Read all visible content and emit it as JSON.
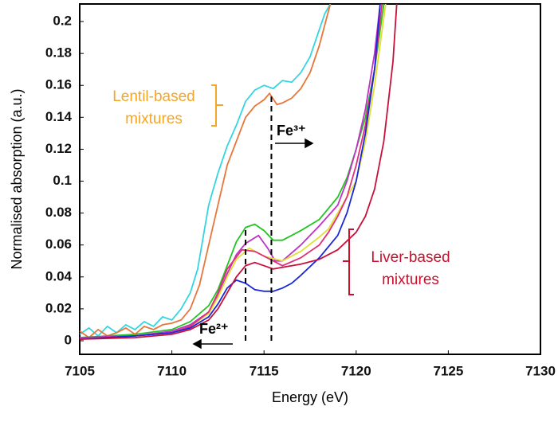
{
  "chart_data": {
    "type": "line",
    "xlabel": "Energy (eV)",
    "ylabel": "Normalised absorption (a.u.)",
    "xlim": [
      7105,
      7130
    ],
    "xticks": [
      7105,
      7110,
      7115,
      7120,
      7125,
      7130
    ],
    "ylim": [
      -0.0085,
      0.211
    ],
    "yticks": [
      0,
      0.02,
      0.04,
      0.06,
      0.08,
      0.1,
      0.12,
      0.14,
      0.16,
      0.18,
      0.2
    ],
    "series": [
      {
        "color": "#33d6e0",
        "x": [
          7105,
          7105.5,
          7106,
          7106.5,
          7107,
          7107.5,
          7108,
          7108.5,
          7109,
          7109.5,
          7110,
          7110.5,
          7111,
          7111.4,
          7111.7,
          7112,
          7112.5,
          7113,
          7113.5,
          7114,
          7114.5,
          7115,
          7115.5,
          7116,
          7116.5,
          7117,
          7117.5,
          7118,
          7118.3,
          7118.6
        ],
        "values": [
          0.004,
          0.008,
          0.003,
          0.009,
          0.005,
          0.01,
          0.007,
          0.012,
          0.009,
          0.015,
          0.013,
          0.02,
          0.03,
          0.045,
          0.065,
          0.085,
          0.105,
          0.122,
          0.135,
          0.15,
          0.157,
          0.16,
          0.158,
          0.163,
          0.162,
          0.168,
          0.178,
          0.195,
          0.205,
          0.211
        ]
      },
      {
        "color": "#e8763a",
        "x": [
          7105,
          7105.5,
          7106,
          7106.5,
          7107,
          7107.5,
          7108,
          7108.5,
          7109,
          7109.5,
          7110,
          7110.5,
          7111,
          7111.5,
          7112,
          7112.5,
          7113,
          7113.5,
          7114,
          7114.5,
          7115,
          7115.3,
          7115.7,
          7116,
          7116.5,
          7117,
          7117.5,
          7118,
          7118.3,
          7118.6
        ],
        "values": [
          0.006,
          0.002,
          0.007,
          0.003,
          0.005,
          0.008,
          0.004,
          0.009,
          0.007,
          0.01,
          0.011,
          0.013,
          0.02,
          0.035,
          0.06,
          0.085,
          0.11,
          0.125,
          0.14,
          0.147,
          0.151,
          0.155,
          0.148,
          0.149,
          0.152,
          0.158,
          0.168,
          0.185,
          0.198,
          0.211
        ]
      },
      {
        "color": "#22c322",
        "x": [
          7105,
          7108,
          7110,
          7111,
          7112,
          7112.5,
          7113,
          7113.5,
          7114,
          7114.5,
          7115,
          7115.5,
          7116,
          7116.5,
          7117,
          7118,
          7119,
          7119.5,
          7120,
          7120.5,
          7121,
          7121.5
        ],
        "values": [
          0.002,
          0.004,
          0.007,
          0.012,
          0.022,
          0.032,
          0.047,
          0.062,
          0.071,
          0.073,
          0.069,
          0.063,
          0.063,
          0.066,
          0.069,
          0.076,
          0.09,
          0.102,
          0.12,
          0.14,
          0.17,
          0.211
        ]
      },
      {
        "color": "#c032c8",
        "x": [
          7105,
          7108,
          7110,
          7111,
          7112,
          7112.5,
          7113,
          7113.5,
          7114,
          7114.7,
          7115.2,
          7115.6,
          7116,
          7117,
          7118,
          7119,
          7119.5,
          7120,
          7120.5,
          7121,
          7121.3
        ],
        "values": [
          0.002,
          0.003,
          0.006,
          0.01,
          0.018,
          0.028,
          0.042,
          0.054,
          0.061,
          0.066,
          0.058,
          0.05,
          0.05,
          0.06,
          0.072,
          0.085,
          0.1,
          0.12,
          0.145,
          0.18,
          0.211
        ]
      },
      {
        "color": "#e0e030",
        "x": [
          7105,
          7108,
          7110,
          7111,
          7112,
          7112.5,
          7113,
          7113.5,
          7114.2,
          7115,
          7116,
          7117,
          7118,
          7118.5,
          7119,
          7119.5,
          7120,
          7120.5,
          7121,
          7121.6
        ],
        "values": [
          0.001,
          0.003,
          0.005,
          0.009,
          0.017,
          0.027,
          0.04,
          0.051,
          0.058,
          0.053,
          0.05,
          0.056,
          0.065,
          0.07,
          0.08,
          0.09,
          0.1,
          0.125,
          0.16,
          0.211
        ]
      },
      {
        "color": "#e0307a",
        "x": [
          7105,
          7108,
          7110,
          7111,
          7112,
          7112.5,
          7113,
          7113.8,
          7114.5,
          7115,
          7115.5,
          7116,
          7117,
          7118,
          7118.5,
          7119,
          7119.5,
          7120,
          7120.5,
          7121,
          7121.4
        ],
        "values": [
          0.001,
          0.003,
          0.005,
          0.009,
          0.018,
          0.03,
          0.045,
          0.057,
          0.056,
          0.053,
          0.05,
          0.047,
          0.052,
          0.06,
          0.068,
          0.078,
          0.09,
          0.11,
          0.135,
          0.17,
          0.211
        ]
      },
      {
        "color": "#1a28d8",
        "x": [
          7105,
          7108,
          7110,
          7111,
          7112,
          7112.5,
          7113,
          7113.5,
          7114,
          7114.5,
          7115,
          7115.5,
          7116,
          7116.5,
          7117,
          7118,
          7119,
          7119.5,
          7120,
          7120.5,
          7121,
          7121.3
        ],
        "values": [
          0.001,
          0.003,
          0.005,
          0.008,
          0.015,
          0.023,
          0.033,
          0.038,
          0.036,
          0.032,
          0.031,
          0.031,
          0.033,
          0.036,
          0.041,
          0.052,
          0.066,
          0.08,
          0.1,
          0.13,
          0.17,
          0.211
        ]
      },
      {
        "color": "#c8103a",
        "x": [
          7105,
          7108,
          7110,
          7111,
          7112,
          7112.5,
          7113,
          7113.5,
          7114,
          7114.5,
          7115,
          7115.5,
          7116,
          7117,
          7118,
          7119,
          7120,
          7120.5,
          7121,
          7121.5,
          7122,
          7122.2
        ],
        "values": [
          0.001,
          0.002,
          0.004,
          0.007,
          0.013,
          0.02,
          0.03,
          0.04,
          0.047,
          0.049,
          0.047,
          0.045,
          0.046,
          0.048,
          0.051,
          0.057,
          0.068,
          0.078,
          0.095,
          0.125,
          0.175,
          0.211
        ]
      }
    ],
    "dashed_lines": [
      {
        "x": 7114,
        "ylim": [
          0,
          0.07
        ]
      },
      {
        "x": 7115.4,
        "ylim": [
          0,
          0.153
        ]
      }
    ],
    "annotations": [
      {
        "lines": [
          "Lentil-based",
          "mixtures"
        ],
        "color": "#f5a623"
      },
      {
        "lines": [
          "Liver-based",
          "mixtures"
        ],
        "color": "#c8102e"
      },
      {
        "text": "Fe³⁺"
      },
      {
        "text": "Fe²⁺"
      }
    ]
  }
}
